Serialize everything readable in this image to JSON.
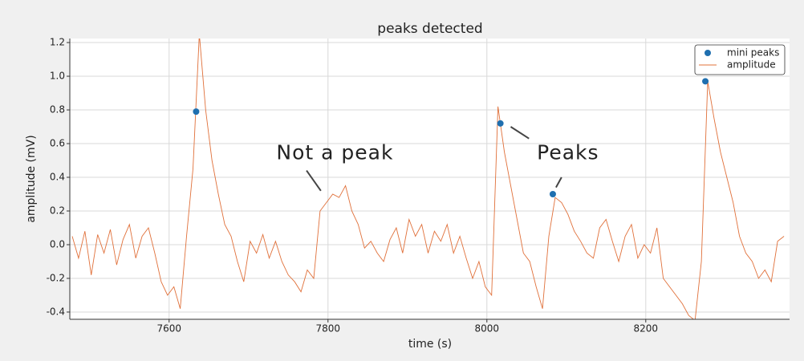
{
  "chart_data": {
    "type": "line",
    "title": "peaks detected",
    "xlabel": "time (s)",
    "ylabel": "amplitude (mV)",
    "xlim": [
      7475,
      8381
    ],
    "ylim": [
      -0.443,
      1.224
    ],
    "xticks": [
      7600,
      7800,
      8000,
      8200
    ],
    "yticks": [
      -0.4,
      -0.2,
      {
        "value": 0,
        "label": "0.0"
      },
      0.2,
      0.4,
      0.6,
      0.8,
      {
        "value": 1,
        "label": "1.0"
      },
      1.2
    ],
    "grid": true,
    "legend": "upper right",
    "series": [
      {
        "name": "mini peaks",
        "type": "scatter",
        "color": "#1f6faf",
        "x": [
          7634,
          8017,
          8083,
          8275
        ],
        "values": [
          0.79,
          0.72,
          0.3,
          0.97
        ]
      },
      {
        "name": "amplitude",
        "type": "line",
        "color": "#e0703a",
        "x": [
          7478,
          7486,
          7494,
          7502,
          7510,
          7518,
          7526,
          7534,
          7542,
          7550,
          7558,
          7566,
          7574,
          7582,
          7590,
          7598,
          7606,
          7614,
          7622,
          7630,
          7638,
          7646,
          7654,
          7662,
          7670,
          7678,
          7686,
          7694,
          7702,
          7710,
          7718,
          7726,
          7734,
          7742,
          7750,
          7758,
          7766,
          7774,
          7782,
          7790,
          7798,
          7806,
          7814,
          7822,
          7830,
          7838,
          7846,
          7854,
          7862,
          7870,
          7878,
          7886,
          7894,
          7902,
          7910,
          7918,
          7926,
          7934,
          7942,
          7950,
          7958,
          7966,
          7974,
          7982,
          7990,
          7998,
          8006,
          8014,
          8022,
          8030,
          8038,
          8046,
          8054,
          8062,
          8070,
          8078,
          8086,
          8094,
          8102,
          8110,
          8118,
          8126,
          8134,
          8142,
          8150,
          8158,
          8166,
          8174,
          8182,
          8190,
          8198,
          8206,
          8214,
          8222,
          8230,
          8238,
          8246,
          8254,
          8262,
          8270,
          8278,
          8286,
          8294,
          8302,
          8310,
          8318,
          8326,
          8334,
          8342,
          8350,
          8358,
          8366,
          8374
        ],
        "values": [
          0.05,
          -0.08,
          0.08,
          -0.18,
          0.06,
          -0.05,
          0.09,
          -0.12,
          0.03,
          0.12,
          -0.08,
          0.05,
          0.1,
          -0.05,
          -0.22,
          -0.3,
          -0.25,
          -0.38,
          0.05,
          0.45,
          1.25,
          0.8,
          0.5,
          0.3,
          0.12,
          0.05,
          -0.1,
          -0.22,
          0.02,
          -0.05,
          0.06,
          -0.08,
          0.02,
          -0.1,
          -0.18,
          -0.22,
          -0.28,
          -0.15,
          -0.2,
          0.2,
          0.25,
          0.3,
          0.28,
          0.35,
          0.2,
          0.12,
          -0.02,
          0.02,
          -0.05,
          -0.1,
          0.03,
          0.1,
          -0.05,
          0.15,
          0.05,
          0.12,
          -0.05,
          0.08,
          0.02,
          0.12,
          -0.05,
          0.05,
          -0.08,
          -0.2,
          -0.1,
          -0.25,
          -0.3,
          0.82,
          0.55,
          0.35,
          0.15,
          -0.05,
          -0.1,
          -0.25,
          -0.38,
          0.05,
          0.28,
          0.25,
          0.18,
          0.08,
          0.02,
          -0.05,
          -0.08,
          0.1,
          0.15,
          0.02,
          -0.1,
          0.05,
          0.12,
          -0.08,
          0.0,
          -0.05,
          0.1,
          -0.2,
          -0.25,
          -0.3,
          -0.35,
          -0.42,
          -0.45,
          -0.1,
          0.97,
          0.75,
          0.55,
          0.4,
          0.25,
          0.05,
          -0.05,
          -0.1,
          -0.2,
          -0.15,
          -0.22,
          0.02,
          0.05
        ]
      }
    ],
    "annotations": [
      {
        "text": "Not a peak",
        "x": 7735,
        "y": 0.54,
        "arrows": [
          [
            7773,
            0.44,
            7791,
            0.32
          ]
        ]
      },
      {
        "text": "Peaks",
        "x": 8063,
        "y": 0.54,
        "arrows": [
          [
            8030,
            0.7,
            8053,
            0.63
          ],
          [
            8094,
            0.4,
            8087,
            0.34
          ]
        ]
      }
    ]
  }
}
